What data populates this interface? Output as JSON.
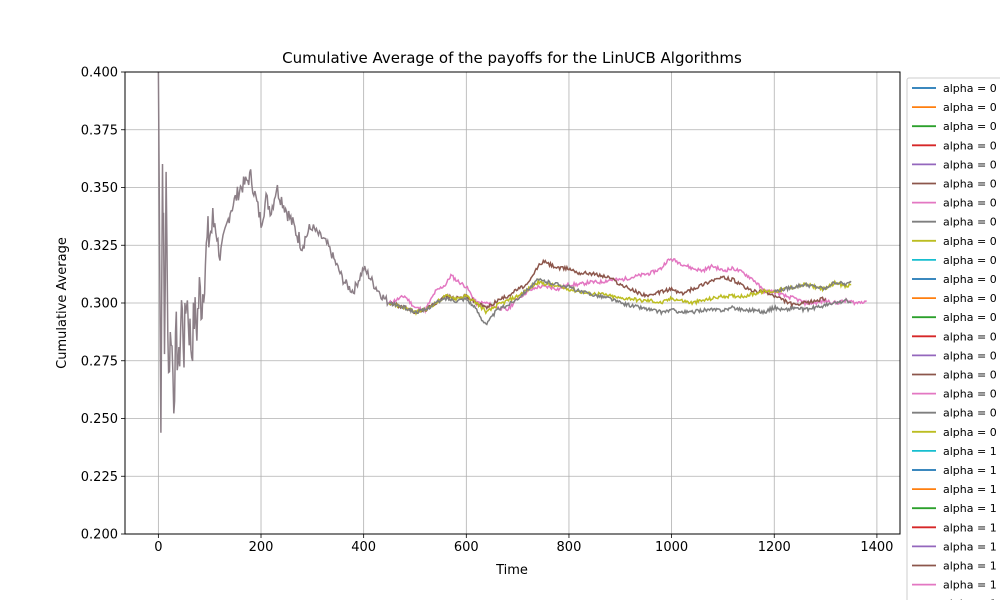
{
  "chart_data": {
    "type": "line",
    "title": "Cumulative Average of the payoffs for the LinUCB Algorithms",
    "xlabel": "Time",
    "ylabel": "Cumulative Average",
    "xlim": [
      -65,
      1445
    ],
    "ylim": [
      0.2,
      0.4
    ],
    "xticks": [
      0,
      200,
      400,
      600,
      800,
      1000,
      1200,
      1400
    ],
    "yticks": [
      0.2,
      0.225,
      0.25,
      0.275,
      0.3,
      0.325,
      0.35,
      0.375,
      0.4
    ],
    "grid": true,
    "legend_position": "right, outside plot area (clipped)",
    "legend": [
      {
        "label": "alpha = 0",
        "color": "#1f77b4"
      },
      {
        "label": "alpha = 0",
        "color": "#ff7f0e"
      },
      {
        "label": "alpha = 0",
        "color": "#2ca02c"
      },
      {
        "label": "alpha = 0",
        "color": "#d62728"
      },
      {
        "label": "alpha = 0",
        "color": "#9467bd"
      },
      {
        "label": "alpha = 0",
        "color": "#8c564b"
      },
      {
        "label": "alpha = 0",
        "color": "#e377c2"
      },
      {
        "label": "alpha = 0",
        "color": "#7f7f7f"
      },
      {
        "label": "alpha = 0",
        "color": "#bcbd22"
      },
      {
        "label": "alpha = 0",
        "color": "#17becf"
      },
      {
        "label": "alpha = 0",
        "color": "#1f77b4"
      },
      {
        "label": "alpha = 0",
        "color": "#ff7f0e"
      },
      {
        "label": "alpha = 0",
        "color": "#2ca02c"
      },
      {
        "label": "alpha = 0",
        "color": "#d62728"
      },
      {
        "label": "alpha = 0",
        "color": "#9467bd"
      },
      {
        "label": "alpha = 0",
        "color": "#8c564b"
      },
      {
        "label": "alpha = 0",
        "color": "#e377c2"
      },
      {
        "label": "alpha = 0",
        "color": "#7f7f7f"
      },
      {
        "label": "alpha = 0",
        "color": "#bcbd22"
      },
      {
        "label": "alpha = 1",
        "color": "#17becf"
      },
      {
        "label": "alpha = 1",
        "color": "#1f77b4"
      },
      {
        "label": "alpha = 1",
        "color": "#ff7f0e"
      },
      {
        "label": "alpha = 1",
        "color": "#2ca02c"
      },
      {
        "label": "alpha = 1",
        "color": "#d62728"
      },
      {
        "label": "alpha = 1",
        "color": "#9467bd"
      },
      {
        "label": "alpha = 1",
        "color": "#8c564b"
      },
      {
        "label": "alpha = 1",
        "color": "#e377c2"
      },
      {
        "label": "alpha = 1",
        "color": "#7f7f7f"
      }
    ],
    "shared_prefix": {
      "x": [
        0,
        5,
        8,
        10,
        12,
        15,
        20,
        25,
        30,
        35,
        40,
        45,
        50,
        55,
        60,
        65,
        70,
        75,
        80,
        85,
        90,
        95,
        100,
        110,
        120,
        130,
        140,
        150,
        160,
        170,
        180,
        190,
        200,
        210,
        220,
        230,
        240,
        250,
        260,
        270,
        280,
        290,
        300,
        310,
        320,
        330,
        340,
        350,
        360,
        370,
        380,
        390,
        400,
        410,
        420,
        430,
        440,
        450
      ],
      "y": [
        0.4,
        0.25,
        0.36,
        0.33,
        0.28,
        0.35,
        0.27,
        0.29,
        0.26,
        0.285,
        0.27,
        0.3,
        0.28,
        0.305,
        0.29,
        0.28,
        0.295,
        0.29,
        0.305,
        0.3,
        0.315,
        0.325,
        0.33,
        0.335,
        0.32,
        0.33,
        0.34,
        0.345,
        0.35,
        0.352,
        0.355,
        0.345,
        0.335,
        0.345,
        0.34,
        0.35,
        0.345,
        0.34,
        0.335,
        0.33,
        0.325,
        0.33,
        0.333,
        0.33,
        0.328,
        0.325,
        0.32,
        0.315,
        0.31,
        0.307,
        0.305,
        0.31,
        0.315,
        0.312,
        0.308,
        0.305,
        0.302,
        0.3
      ]
    },
    "series": [
      {
        "color": "#e377c2",
        "x": [
          450,
          480,
          500,
          520,
          540,
          560,
          570,
          580,
          600,
          620,
          640,
          660,
          680,
          700,
          720,
          740,
          760,
          780,
          800,
          820,
          840,
          860,
          880,
          900,
          920,
          940,
          960,
          980,
          990,
          1000,
          1020,
          1040,
          1060,
          1080,
          1100,
          1120,
          1140,
          1160,
          1180,
          1200,
          1220,
          1240,
          1260,
          1280,
          1300,
          1320,
          1340,
          1360,
          1380
        ],
        "y": [
          0.3,
          0.303,
          0.298,
          0.297,
          0.305,
          0.308,
          0.312,
          0.31,
          0.307,
          0.3,
          0.3,
          0.298,
          0.297,
          0.302,
          0.305,
          0.307,
          0.307,
          0.306,
          0.308,
          0.308,
          0.309,
          0.309,
          0.31,
          0.31,
          0.311,
          0.312,
          0.313,
          0.315,
          0.318,
          0.319,
          0.317,
          0.315,
          0.314,
          0.316,
          0.314,
          0.315,
          0.313,
          0.31,
          0.305,
          0.305,
          0.303,
          0.302,
          0.3,
          0.3,
          0.301,
          0.3,
          0.301,
          0.3,
          0.301
        ]
      },
      {
        "color": "#8c564b",
        "x": [
          450,
          480,
          500,
          520,
          540,
          560,
          580,
          600,
          620,
          640,
          660,
          680,
          700,
          720,
          740,
          750,
          760,
          780,
          800,
          820,
          840,
          860,
          880,
          900,
          920,
          940,
          960,
          980,
          1000,
          1020,
          1040,
          1060,
          1080,
          1100,
          1120,
          1140,
          1160,
          1180,
          1200,
          1220,
          1240,
          1260,
          1280,
          1300
        ],
        "y": [
          0.3,
          0.298,
          0.296,
          0.297,
          0.3,
          0.303,
          0.302,
          0.303,
          0.3,
          0.298,
          0.301,
          0.303,
          0.306,
          0.308,
          0.316,
          0.318,
          0.317,
          0.315,
          0.315,
          0.313,
          0.313,
          0.312,
          0.311,
          0.308,
          0.306,
          0.304,
          0.303,
          0.305,
          0.306,
          0.304,
          0.306,
          0.308,
          0.31,
          0.311,
          0.31,
          0.307,
          0.305,
          0.305,
          0.303,
          0.301,
          0.299,
          0.3,
          0.301,
          0.302
        ]
      },
      {
        "color": "#bcbd22",
        "x": [
          450,
          480,
          500,
          520,
          540,
          560,
          580,
          600,
          620,
          640,
          660,
          680,
          700,
          720,
          740,
          760,
          780,
          800,
          820,
          840,
          860,
          880,
          900,
          920,
          940,
          960,
          980,
          1000,
          1020,
          1040,
          1060,
          1080,
          1100,
          1120,
          1140,
          1160,
          1180,
          1200,
          1220,
          1240,
          1260,
          1280,
          1300,
          1320,
          1340,
          1350
        ],
        "y": [
          0.3,
          0.298,
          0.296,
          0.297,
          0.3,
          0.303,
          0.302,
          0.303,
          0.3,
          0.296,
          0.299,
          0.301,
          0.303,
          0.306,
          0.309,
          0.308,
          0.307,
          0.306,
          0.305,
          0.304,
          0.304,
          0.303,
          0.302,
          0.302,
          0.301,
          0.301,
          0.3,
          0.302,
          0.301,
          0.3,
          0.301,
          0.302,
          0.303,
          0.303,
          0.303,
          0.304,
          0.305,
          0.305,
          0.306,
          0.307,
          0.308,
          0.307,
          0.306,
          0.309,
          0.307,
          0.308
        ]
      },
      {
        "color": "#7f7f7f",
        "x": [
          450,
          480,
          500,
          520,
          540,
          560,
          580,
          600,
          620,
          630,
          640,
          660,
          680,
          700,
          720,
          740,
          760,
          780,
          800,
          820,
          840,
          860,
          880,
          900,
          920,
          940,
          960,
          980,
          1000,
          1020,
          1040,
          1060,
          1080,
          1100,
          1120,
          1140,
          1160,
          1180,
          1200,
          1220,
          1240,
          1260,
          1280,
          1300,
          1320,
          1340,
          1350
        ],
        "y": [
          0.3,
          0.298,
          0.296,
          0.297,
          0.3,
          0.302,
          0.301,
          0.302,
          0.297,
          0.293,
          0.291,
          0.297,
          0.299,
          0.302,
          0.306,
          0.31,
          0.309,
          0.308,
          0.307,
          0.305,
          0.304,
          0.303,
          0.302,
          0.3,
          0.299,
          0.298,
          0.297,
          0.296,
          0.297,
          0.296,
          0.296,
          0.297,
          0.297,
          0.297,
          0.298,
          0.297,
          0.297,
          0.296,
          0.298,
          0.297,
          0.298,
          0.297,
          0.298,
          0.299,
          0.3,
          0.301,
          0.3
        ]
      },
      {
        "color": "#7f7f7f",
        "x": [
          1200,
          1220,
          1240,
          1260,
          1280,
          1300,
          1310,
          1320,
          1340,
          1350
        ],
        "y": [
          0.305,
          0.306,
          0.307,
          0.308,
          0.307,
          0.306,
          0.308,
          0.309,
          0.308,
          0.309
        ]
      }
    ]
  }
}
